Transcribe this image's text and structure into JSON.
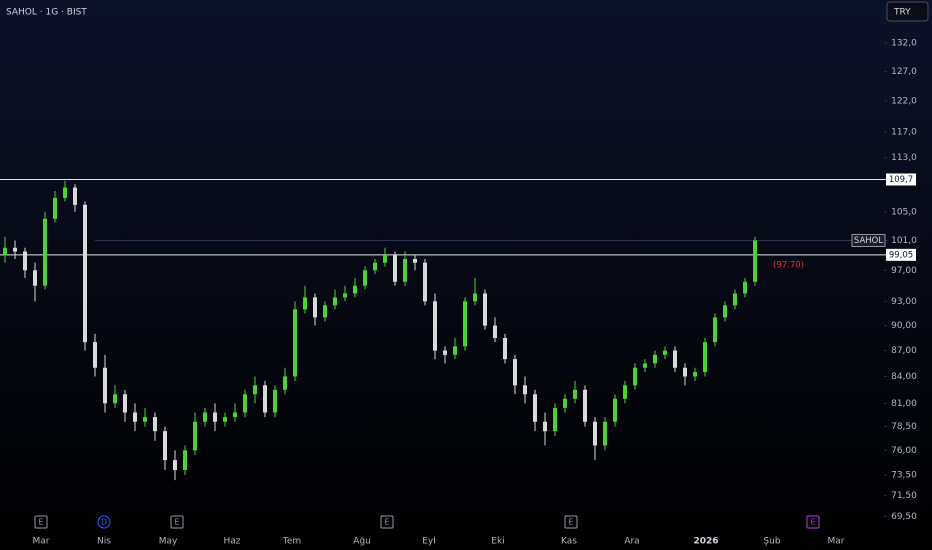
{
  "chart_data": {
    "type": "candlestick",
    "title": "SAHOL · 1G · BIST",
    "currency_button": "TRY",
    "log_scale": true,
    "ylim": [
      66.4,
      139.9
    ],
    "yticks": [
      {
        "value": 132,
        "label": "132,0"
      },
      {
        "value": 127,
        "label": "127,0"
      },
      {
        "value": 122,
        "label": "122,0"
      },
      {
        "value": 117,
        "label": "117,0"
      },
      {
        "value": 113,
        "label": "113,0"
      },
      {
        "value": 105,
        "label": "105,0"
      },
      {
        "value": 101,
        "label": "101,0"
      },
      {
        "value": 97,
        "label": "97,00"
      },
      {
        "value": 93,
        "label": "93,00"
      },
      {
        "value": 90,
        "label": "90,00"
      },
      {
        "value": 87,
        "label": "87,00"
      },
      {
        "value": 84,
        "label": "84,00"
      },
      {
        "value": 81,
        "label": "81,00"
      },
      {
        "value": 78.5,
        "label": "78,50"
      },
      {
        "value": 76,
        "label": "76,00"
      },
      {
        "value": 73.5,
        "label": "73,50"
      },
      {
        "value": 71.5,
        "label": "71,50"
      },
      {
        "value": 69.5,
        "label": "69,50"
      }
    ],
    "x_labels": [
      "Mar",
      "Nis",
      "May",
      "Haz",
      "Tem",
      "Ağu",
      "Eyl",
      "Eki",
      "Kas",
      "Ara",
      "2026",
      "Şub",
      "Mar"
    ],
    "events": [
      "E",
      "D",
      "E",
      "E",
      "E",
      "E"
    ],
    "up_color": "#4cd137",
    "down_color": "#d9d9d9",
    "hlines": [
      {
        "value": 109.7,
        "label": "109,7"
      },
      {
        "value": 99.05,
        "label": "99,05"
      }
    ],
    "last_price": {
      "name": "SAHOL",
      "value": 101
    },
    "annotation": {
      "text": "(97.70)",
      "value": 97.7,
      "color": "#e03131"
    },
    "open": [
      99,
      100,
      99.5,
      97,
      95,
      104,
      107,
      108.5,
      106,
      88,
      85,
      81,
      82,
      80,
      79,
      79.5,
      78,
      75,
      74,
      76,
      79,
      80,
      79,
      79.5,
      80,
      82,
      83,
      80,
      82.5,
      84,
      92,
      93.5,
      91,
      92.5,
      93.5,
      94,
      95,
      97,
      98,
      99,
      95.5,
      98.5,
      98,
      93,
      87,
      86.5,
      87.5,
      93,
      94,
      90,
      88.5,
      86,
      83,
      82,
      79,
      78,
      80.5,
      81.5,
      82.5,
      79,
      76.5,
      79,
      81.5,
      83,
      85,
      85.5,
      86.5,
      87,
      85,
      84,
      84.5,
      88,
      91,
      92.5,
      94,
      95.5
    ],
    "high": [
      101.5,
      101,
      100,
      98,
      105,
      108,
      109.5,
      109,
      106.5,
      89,
      86.5,
      83,
      82.5,
      81,
      80.5,
      80,
      78.5,
      76,
      76.5,
      80,
      80.5,
      81,
      80,
      81,
      82.5,
      84,
      83.5,
      83,
      85,
      93,
      95,
      94,
      93,
      94.5,
      95,
      96,
      97.5,
      98.5,
      100,
      99.5,
      99.5,
      99,
      98.5,
      94,
      87.5,
      88.5,
      93.5,
      96,
      94.5,
      91,
      89,
      86.5,
      84,
      82.5,
      80,
      81,
      82,
      83.5,
      83,
      79.5,
      79.5,
      82,
      83.5,
      85.5,
      86,
      87,
      87.5,
      87.5,
      85.5,
      85,
      88.5,
      91.5,
      93,
      94.5,
      96,
      101.5
    ],
    "low": [
      98,
      98.5,
      96,
      93,
      94.5,
      103.5,
      106.5,
      105,
      87,
      84,
      80,
      80.5,
      79,
      78,
      78.5,
      77,
      74,
      73,
      73.5,
      75.5,
      78.5,
      78,
      78.5,
      79,
      79.5,
      81,
      79.5,
      79.5,
      82,
      83.5,
      91.5,
      90,
      90.5,
      92,
      93,
      93.5,
      94.5,
      96.5,
      97.5,
      95,
      95,
      97,
      92.5,
      86,
      85.5,
      86,
      87,
      92.5,
      89.5,
      88,
      85.5,
      82,
      81,
      78,
      76.5,
      77.5,
      80,
      81,
      78.5,
      75,
      76,
      78.5,
      81,
      82.5,
      84.5,
      85,
      86,
      84.5,
      83,
      83.5,
      84,
      87.5,
      90.5,
      92,
      93.5,
      95
    ],
    "close": [
      100,
      99.5,
      97,
      95,
      104,
      107,
      108.5,
      106,
      88,
      85,
      81,
      82,
      80,
      79,
      79.5,
      78,
      75,
      74,
      76,
      79,
      80,
      79,
      79.5,
      80,
      82,
      83,
      80,
      82.5,
      84,
      92,
      93.5,
      91,
      92.5,
      93.5,
      94,
      95,
      97,
      98,
      99,
      95.5,
      98.5,
      98,
      93,
      87,
      86.5,
      87.5,
      93,
      94,
      90,
      88.5,
      86,
      83,
      82,
      79,
      78,
      80.5,
      81.5,
      82.5,
      79,
      76.5,
      79,
      81.5,
      83,
      85,
      85.5,
      86.5,
      87,
      85,
      84,
      84.5,
      88,
      91,
      92.5,
      94,
      95.5,
      101
    ]
  }
}
